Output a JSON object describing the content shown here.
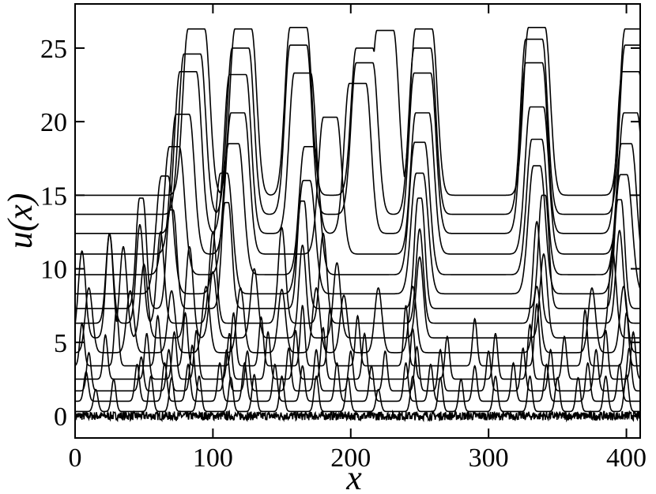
{
  "chart_data": {
    "type": "line",
    "title": "",
    "xlabel": "x",
    "ylabel": "u(x)",
    "xlim": [
      0,
      410
    ],
    "ylim": [
      -1.5,
      28
    ],
    "xticks": [
      0,
      100,
      200,
      300,
      400
    ],
    "xtick_labels": [
      "0",
      "100",
      "200",
      "300",
      "400"
    ],
    "yticks": [
      0,
      5,
      10,
      15,
      20,
      25
    ],
    "ytick_labels": [
      "0",
      "5",
      "10",
      "15",
      "20",
      "25"
    ],
    "grid": false,
    "legend": "none",
    "line_color": "#000000",
    "series_description": "stacked profiles u(x) at successive times, offset vertically; pulses coarsen into large traveling structures",
    "series": [
      {
        "offset": 0.0,
        "peak_height": 0.6,
        "peaks": []
      },
      {
        "offset": 0.3,
        "peak_height": 2.5,
        "peaks": [
          [
            15,
            1.8
          ],
          [
            28,
            2.5
          ],
          [
            55,
            2.7
          ],
          [
            70,
            2.6
          ],
          [
            90,
            2.7
          ],
          [
            113,
            2.6
          ],
          [
            130,
            2.8
          ],
          [
            150,
            2.7
          ],
          [
            175,
            2.7
          ],
          [
            198,
            2.6
          ],
          [
            220,
            1.8
          ],
          [
            245,
            2.7
          ],
          [
            265,
            2.6
          ],
          [
            280,
            2.5
          ],
          [
            305,
            2.7
          ],
          [
            330,
            2.7
          ],
          [
            350,
            2.6
          ],
          [
            365,
            2.6
          ],
          [
            385,
            2.7
          ],
          [
            400,
            2.8
          ]
        ]
      },
      {
        "offset": 1.0,
        "peak_height": 3.2,
        "peaks": [
          [
            8,
            3.0
          ],
          [
            45,
            3.5
          ],
          [
            65,
            3.6
          ],
          [
            82,
            3.5
          ],
          [
            105,
            3.6
          ],
          [
            123,
            3.6
          ],
          [
            145,
            3.5
          ],
          [
            165,
            3.4
          ],
          [
            190,
            3.6
          ],
          [
            215,
            3.4
          ],
          [
            240,
            3.6
          ],
          [
            258,
            3.5
          ],
          [
            290,
            3.4
          ],
          [
            318,
            3.6
          ],
          [
            342,
            3.5
          ],
          [
            372,
            3.6
          ],
          [
            395,
            3.5
          ]
        ]
      },
      {
        "offset": 1.7,
        "peak_height": 3.8,
        "peaks": [
          [
            10,
            4.3
          ],
          [
            48,
            4.0
          ],
          [
            68,
            4.5
          ],
          [
            85,
            4.8
          ],
          [
            110,
            4.5
          ],
          [
            125,
            4.4
          ],
          [
            155,
            4.6
          ],
          [
            175,
            4.5
          ],
          [
            200,
            4.4
          ],
          [
            225,
            4.4
          ],
          [
            248,
            4.7
          ],
          [
            265,
            4.5
          ],
          [
            300,
            4.4
          ],
          [
            325,
            4.6
          ],
          [
            345,
            4.5
          ],
          [
            378,
            4.5
          ],
          [
            402,
            4.6
          ]
        ]
      },
      {
        "offset": 2.5,
        "peak_height": 4.0,
        "peaks": [
          [
            22,
            5.5
          ],
          [
            52,
            5.6
          ],
          [
            72,
            5.7
          ],
          [
            88,
            5.8
          ],
          [
            112,
            5.6
          ],
          [
            140,
            5.7
          ],
          [
            160,
            5.8
          ],
          [
            180,
            6.0
          ],
          [
            210,
            5.6
          ],
          [
            245,
            5.9
          ],
          [
            270,
            5.4
          ],
          [
            305,
            5.6
          ],
          [
            330,
            6.2
          ],
          [
            355,
            5.4
          ],
          [
            385,
            5.8
          ],
          [
            405,
            5.7
          ]
        ]
      },
      {
        "offset": 3.4,
        "peak_height": 4.0,
        "peaks": [
          [
            5,
            6.3
          ],
          [
            30,
            7.2
          ],
          [
            60,
            6.8
          ],
          [
            80,
            7.0
          ],
          [
            115,
            7.0
          ],
          [
            135,
            6.7
          ],
          [
            165,
            7.5
          ],
          [
            185,
            7.3
          ],
          [
            205,
            6.8
          ],
          [
            240,
            7.5
          ],
          [
            290,
            6.6
          ],
          [
            335,
            7.6
          ],
          [
            370,
            7.2
          ],
          [
            400,
            7.0
          ]
        ]
      },
      {
        "offset": 4.3,
        "peak_height": 4.2,
        "peaks": [
          [
            10,
            8.7
          ],
          [
            40,
            8.5
          ],
          [
            70,
            8.5
          ],
          [
            95,
            8.8
          ],
          [
            120,
            8.7
          ],
          [
            150,
            8.6
          ],
          [
            175,
            8.7
          ],
          [
            195,
            8.2
          ],
          [
            220,
            8.7
          ],
          [
            245,
            8.8
          ],
          [
            335,
            8.8
          ],
          [
            375,
            8.7
          ],
          [
            398,
            8.8
          ]
        ]
      },
      {
        "offset": 5.3,
        "peak_height": 4.5,
        "peaks": [
          [
            5,
            11.2
          ],
          [
            25,
            12.4
          ],
          [
            35,
            11.5
          ],
          [
            50,
            10.3
          ],
          [
            83,
            11.5
          ],
          [
            100,
            9.8
          ],
          [
            130,
            10.0
          ],
          [
            165,
            11.6
          ],
          [
            190,
            10.4
          ],
          [
            250,
            10.8
          ],
          [
            340,
            11.0
          ],
          [
            390,
            11.2
          ]
        ]
      },
      {
        "offset": 6.3,
        "peak_height": 4.5,
        "peaks": [
          [
            25,
            12.4
          ],
          [
            47,
            13.0
          ],
          [
            62,
            12.5
          ],
          [
            100,
            12.5
          ],
          [
            150,
            12.8
          ],
          [
            180,
            12.4
          ],
          [
            250,
            12.7
          ],
          [
            335,
            13.2
          ],
          [
            395,
            12.6
          ]
        ]
      },
      {
        "offset": 7.3,
        "peak_height": 5.0,
        "peaks": [
          [
            48,
            14.8
          ],
          [
            70,
            14.0
          ],
          [
            110,
            14.5
          ],
          [
            165,
            14.6
          ],
          [
            250,
            14.8
          ],
          [
            340,
            15.0
          ],
          [
            395,
            14.7
          ]
        ]
      },
      {
        "offset": 8.3,
        "peak_height": 5.5,
        "peaks": [
          [
            65,
            16.3
          ],
          [
            108,
            16.5
          ],
          [
            168,
            16.0
          ],
          [
            250,
            16.5
          ],
          [
            335,
            17.0
          ],
          [
            398,
            16.4
          ]
        ]
      },
      {
        "offset": 9.6,
        "peak_height": 6.0,
        "peaks": [
          [
            72,
            18.3
          ],
          [
            115,
            18.5
          ],
          [
            170,
            18.3
          ],
          [
            250,
            18.6
          ],
          [
            335,
            18.8
          ],
          [
            400,
            18.5
          ]
        ]
      },
      {
        "offset": 11.0,
        "peak_height": 6.5,
        "peaks": [
          [
            78,
            20.5
          ],
          [
            118,
            20.6
          ],
          [
            185,
            20.3
          ],
          [
            252,
            20.6
          ],
          [
            335,
            21.0
          ],
          [
            403,
            20.6
          ]
        ]
      },
      {
        "offset": 12.4,
        "peak_height": 7.2,
        "peaks": [
          [
            82,
            23.4
          ],
          [
            118,
            23.2
          ],
          [
            165,
            23.3
          ],
          [
            205,
            22.6
          ],
          [
            252,
            23.3
          ],
          [
            333,
            24.0
          ],
          [
            403,
            23.4
          ]
        ]
      },
      {
        "offset": 13.7,
        "peak_height": 8.0,
        "peaks": [
          [
            85,
            24.6
          ],
          [
            120,
            25.0
          ],
          [
            162,
            25.2
          ],
          [
            210,
            24.0
          ],
          [
            252,
            25.0
          ],
          [
            333,
            25.6
          ],
          [
            405,
            25.2
          ]
        ]
      },
      {
        "offset": 15.0,
        "peak_height": 8.5,
        "peaks": [
          [
            88,
            26.3
          ],
          [
            122,
            26.3
          ],
          [
            162,
            26.4
          ],
          [
            210,
            25.0
          ],
          [
            225,
            26.2
          ],
          [
            253,
            26.3
          ],
          [
            335,
            26.4
          ],
          [
            405,
            26.3
          ]
        ]
      }
    ]
  }
}
